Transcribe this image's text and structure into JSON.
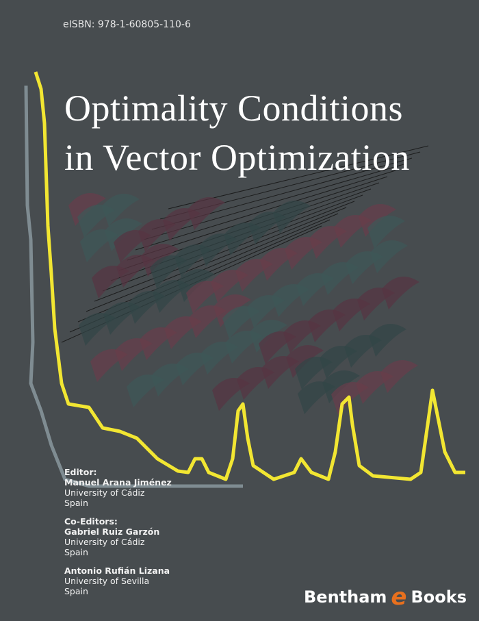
{
  "isbn": "eISBN: 978-1-60805-110-6",
  "title": {
    "line1": "Optimality Conditions",
    "line2": "in Vector Optimization"
  },
  "editor": {
    "heading": "Editor:",
    "name": "Manuel Arana Jiménez",
    "affiliation": "University of Cádiz",
    "country": "Spain"
  },
  "coeditors": {
    "heading": "Co-Editors:",
    "people": [
      {
        "name": "Gabriel Ruiz Garzón",
        "affiliation": "University of Cádiz",
        "country": "Spain"
      },
      {
        "name": "Antonio Rufián Lizana",
        "affiliation": "University of Sevilla",
        "country": "Spain"
      }
    ]
  },
  "publisher": {
    "part1": "Bentham",
    "mark": "e",
    "part2": "Books"
  },
  "colors": {
    "background": "#474c4f",
    "yellow_line": "#f2e632",
    "gray_line": "#7f8c92",
    "logo_accent": "#e8701e"
  }
}
